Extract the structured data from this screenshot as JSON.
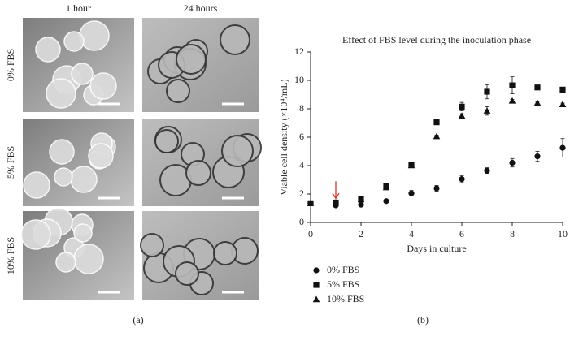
{
  "panel_a": {
    "columns": [
      "1 hour",
      "24 hours"
    ],
    "rows": [
      "0% FBS",
      "5% FBS",
      "10% FBS"
    ],
    "label": "(a)"
  },
  "chart_data": {
    "type": "scatter",
    "title": "Effect of FBS level during the inoculation phase",
    "panel_label": "(b)",
    "xlabel": "Days in culture",
    "ylabel": "Viable cell density (×10⁴/mL)",
    "x": [
      0,
      1,
      2,
      3,
      4,
      5,
      6,
      7,
      8,
      9,
      10
    ],
    "xlim": [
      0,
      10
    ],
    "xticks": [
      0,
      2,
      4,
      6,
      8,
      10
    ],
    "ylim": [
      0,
      12
    ],
    "yticks": [
      0,
      2,
      4,
      6,
      8,
      10,
      12
    ],
    "annotation_arrow_x": 1,
    "annotation_color": "#d9332b",
    "series": [
      {
        "name": "0% FBS",
        "marker": "circle",
        "color": "#111",
        "values": [
          1.35,
          1.2,
          1.25,
          1.5,
          2.05,
          2.4,
          3.05,
          3.65,
          4.2,
          4.65,
          5.25
        ],
        "errors": [
          0.05,
          0.05,
          0.05,
          0.1,
          0.2,
          0.2,
          0.25,
          0.2,
          0.3,
          0.35,
          0.65
        ]
      },
      {
        "name": "5% FBS",
        "marker": "square",
        "color": "#111",
        "values": [
          1.35,
          1.4,
          1.65,
          2.55,
          4.05,
          7.05,
          8.15,
          9.2,
          9.65,
          9.5,
          9.35
        ],
        "errors": [
          0.05,
          0.05,
          0.1,
          0.15,
          0.15,
          0.15,
          0.3,
          0.5,
          0.6,
          0.1,
          0.1
        ]
      },
      {
        "name": "10% FBS",
        "marker": "triangle",
        "color": "#111",
        "values": [
          1.35,
          1.4,
          1.6,
          2.45,
          4.0,
          6.05,
          7.5,
          7.85,
          8.55,
          8.4,
          8.3
        ],
        "errors": [
          0.05,
          0.05,
          0.1,
          0.1,
          0.15,
          0.1,
          0.15,
          0.3,
          0.1,
          0.1,
          0.1
        ]
      }
    ]
  }
}
